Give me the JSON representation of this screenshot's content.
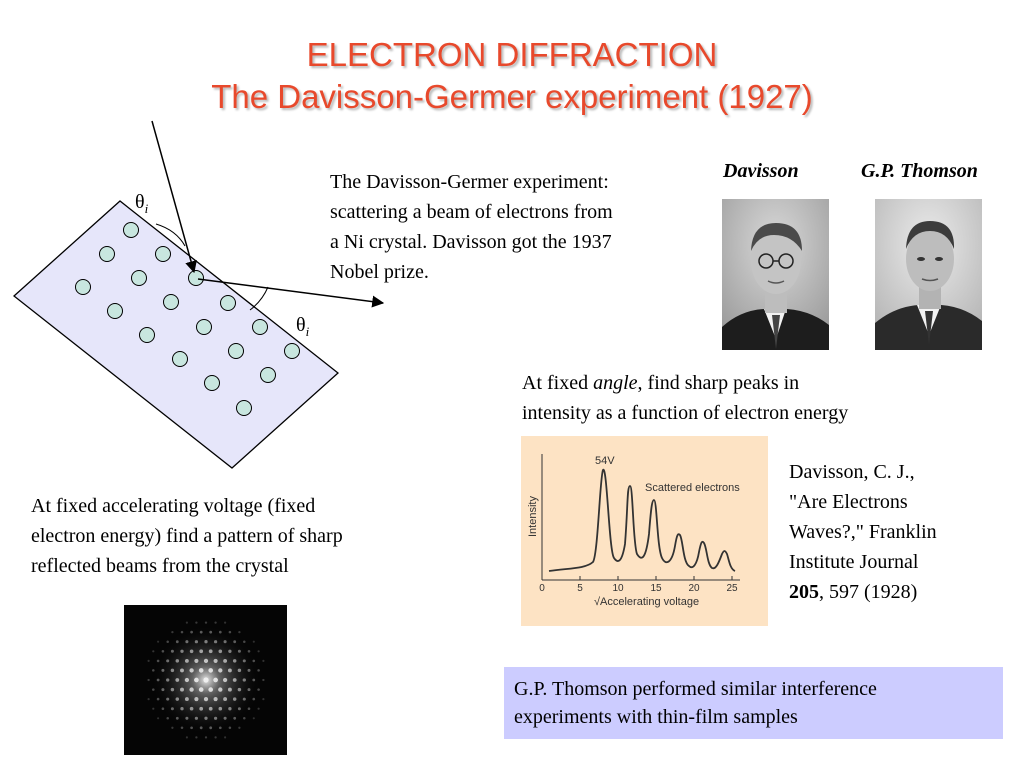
{
  "title": {
    "line1": "ELECTRON DIFFRACTION",
    "line2": "The Davisson-Germer experiment (1927)"
  },
  "description": {
    "line1": "The Davisson-Germer experiment:",
    "line2": "scattering a beam of electrons from",
    "line3": "a Ni crystal. Davisson got the 1937",
    "line4": "Nobel prize."
  },
  "photos": {
    "davisson_label": "Davisson",
    "thomson_label": "G.P. Thomson"
  },
  "diagram": {
    "theta_symbol": "θ",
    "theta_subscript": "i"
  },
  "fixed_angle": {
    "prefix": "At fixed ",
    "emphasis": "angle",
    "suffix": ", find sharp peaks in",
    "line2": "intensity as a function of electron energy"
  },
  "fixed_voltage": {
    "line1": "At fixed accelerating voltage (fixed",
    "line2": "electron energy) find a pattern of sharp",
    "line3": "reflected beams from the crystal"
  },
  "reference": {
    "line1": "Davisson, C. J.,",
    "line2": "\"Are Electrons",
    "line3": "Waves?,\" Franklin",
    "line4": "Institute Journal",
    "volume": "205",
    "pages": ", 597 (1928)"
  },
  "plot": {
    "peak_label": "54V",
    "legend": "Scattered electrons",
    "ylabel": "Intensity",
    "xlabel": "√Accelerating voltage",
    "ticks": [
      "0",
      "5",
      "10",
      "15",
      "20",
      "25"
    ]
  },
  "callout": {
    "line1": "G.P. Thomson performed similar interference",
    "line2": "experiments with thin-film samples"
  },
  "colors": {
    "title": "#e8492c",
    "crystal_fill": "#e6e6fa",
    "atom_fill": "#c8e6df",
    "plot_bg": "#fde3c4",
    "callout_bg": "#ccccff"
  }
}
